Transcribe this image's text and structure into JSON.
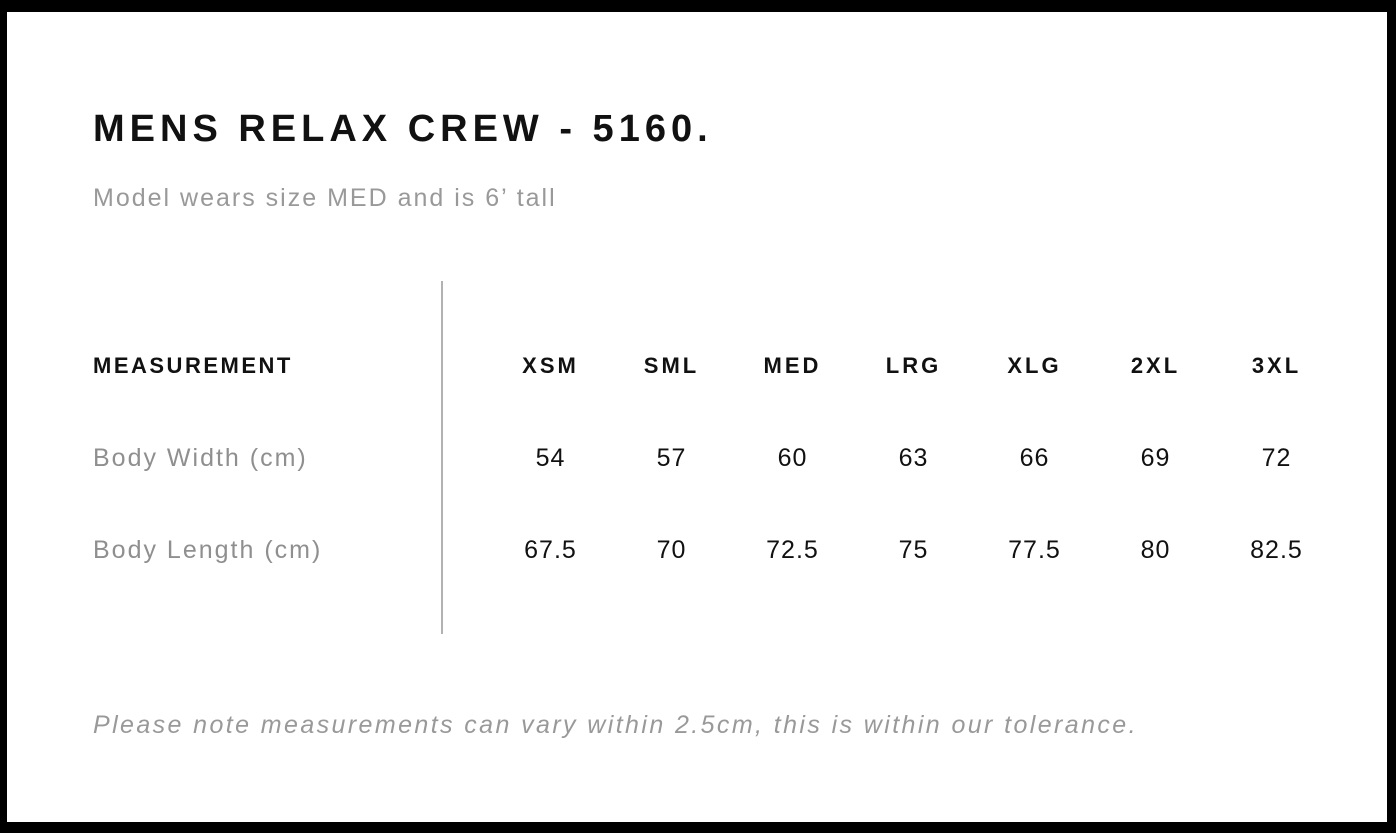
{
  "header": {
    "title": "MENS RELAX CREW - 5160.",
    "subtitle": "Model wears size MED and is 6’ tall"
  },
  "table": {
    "measurement_header": "MEASUREMENT",
    "sizes": [
      "XSM",
      "SML",
      "MED",
      "LRG",
      "XLG",
      "2XL",
      "3XL"
    ],
    "rows": [
      {
        "label": "Body Width (cm)",
        "values": [
          "54",
          "57",
          "60",
          "63",
          "66",
          "69",
          "72"
        ]
      },
      {
        "label": "Body Length (cm)",
        "values": [
          "67.5",
          "70",
          "72.5",
          "75",
          "77.5",
          "80",
          "82.5"
        ]
      }
    ]
  },
  "footer": {
    "note": "Please note measurements can vary within 2.5cm, this is within our tolerance."
  },
  "colors": {
    "background": "#ffffff",
    "frame": "#000000",
    "text_primary": "#111111",
    "text_muted": "#999999",
    "divider": "#b2b2b2"
  }
}
